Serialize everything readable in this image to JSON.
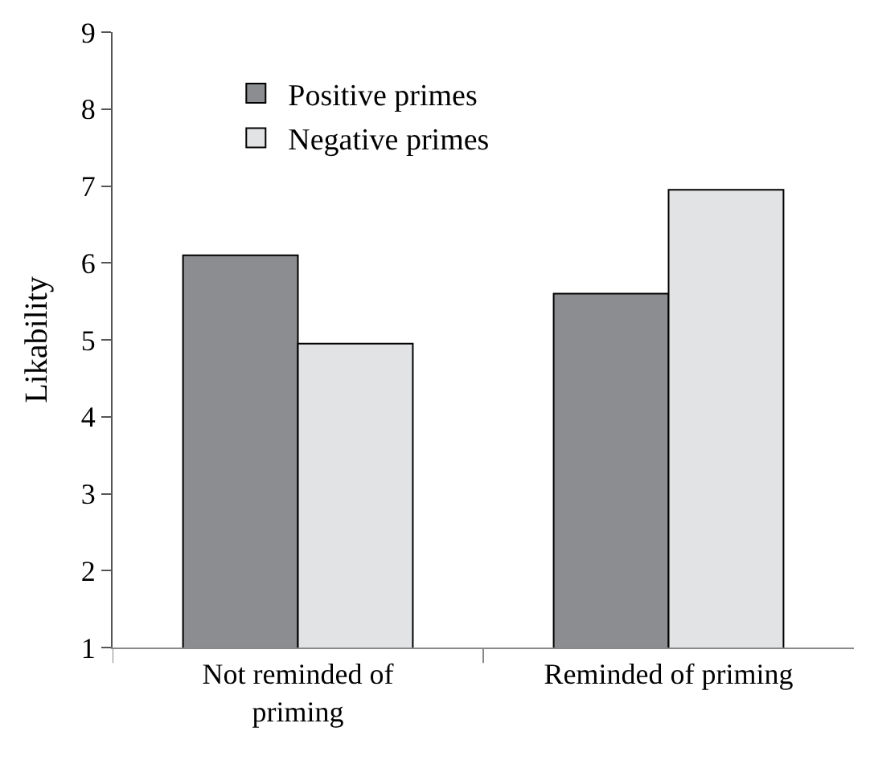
{
  "chart_data": {
    "type": "bar",
    "ylabel": "Likability",
    "categories": [
      "Not reminded of priming",
      "Reminded of priming"
    ],
    "series": [
      {
        "name": "Positive primes",
        "color": "#8c8d91",
        "values": [
          6.1,
          5.6
        ]
      },
      {
        "name": "Negative primes",
        "color": "#e2e3e5",
        "values": [
          4.95,
          6.95
        ]
      }
    ],
    "ylim": [
      1,
      9
    ],
    "yticks": [
      1,
      2,
      3,
      4,
      5,
      6,
      7,
      8,
      9
    ],
    "legend": "top left"
  }
}
